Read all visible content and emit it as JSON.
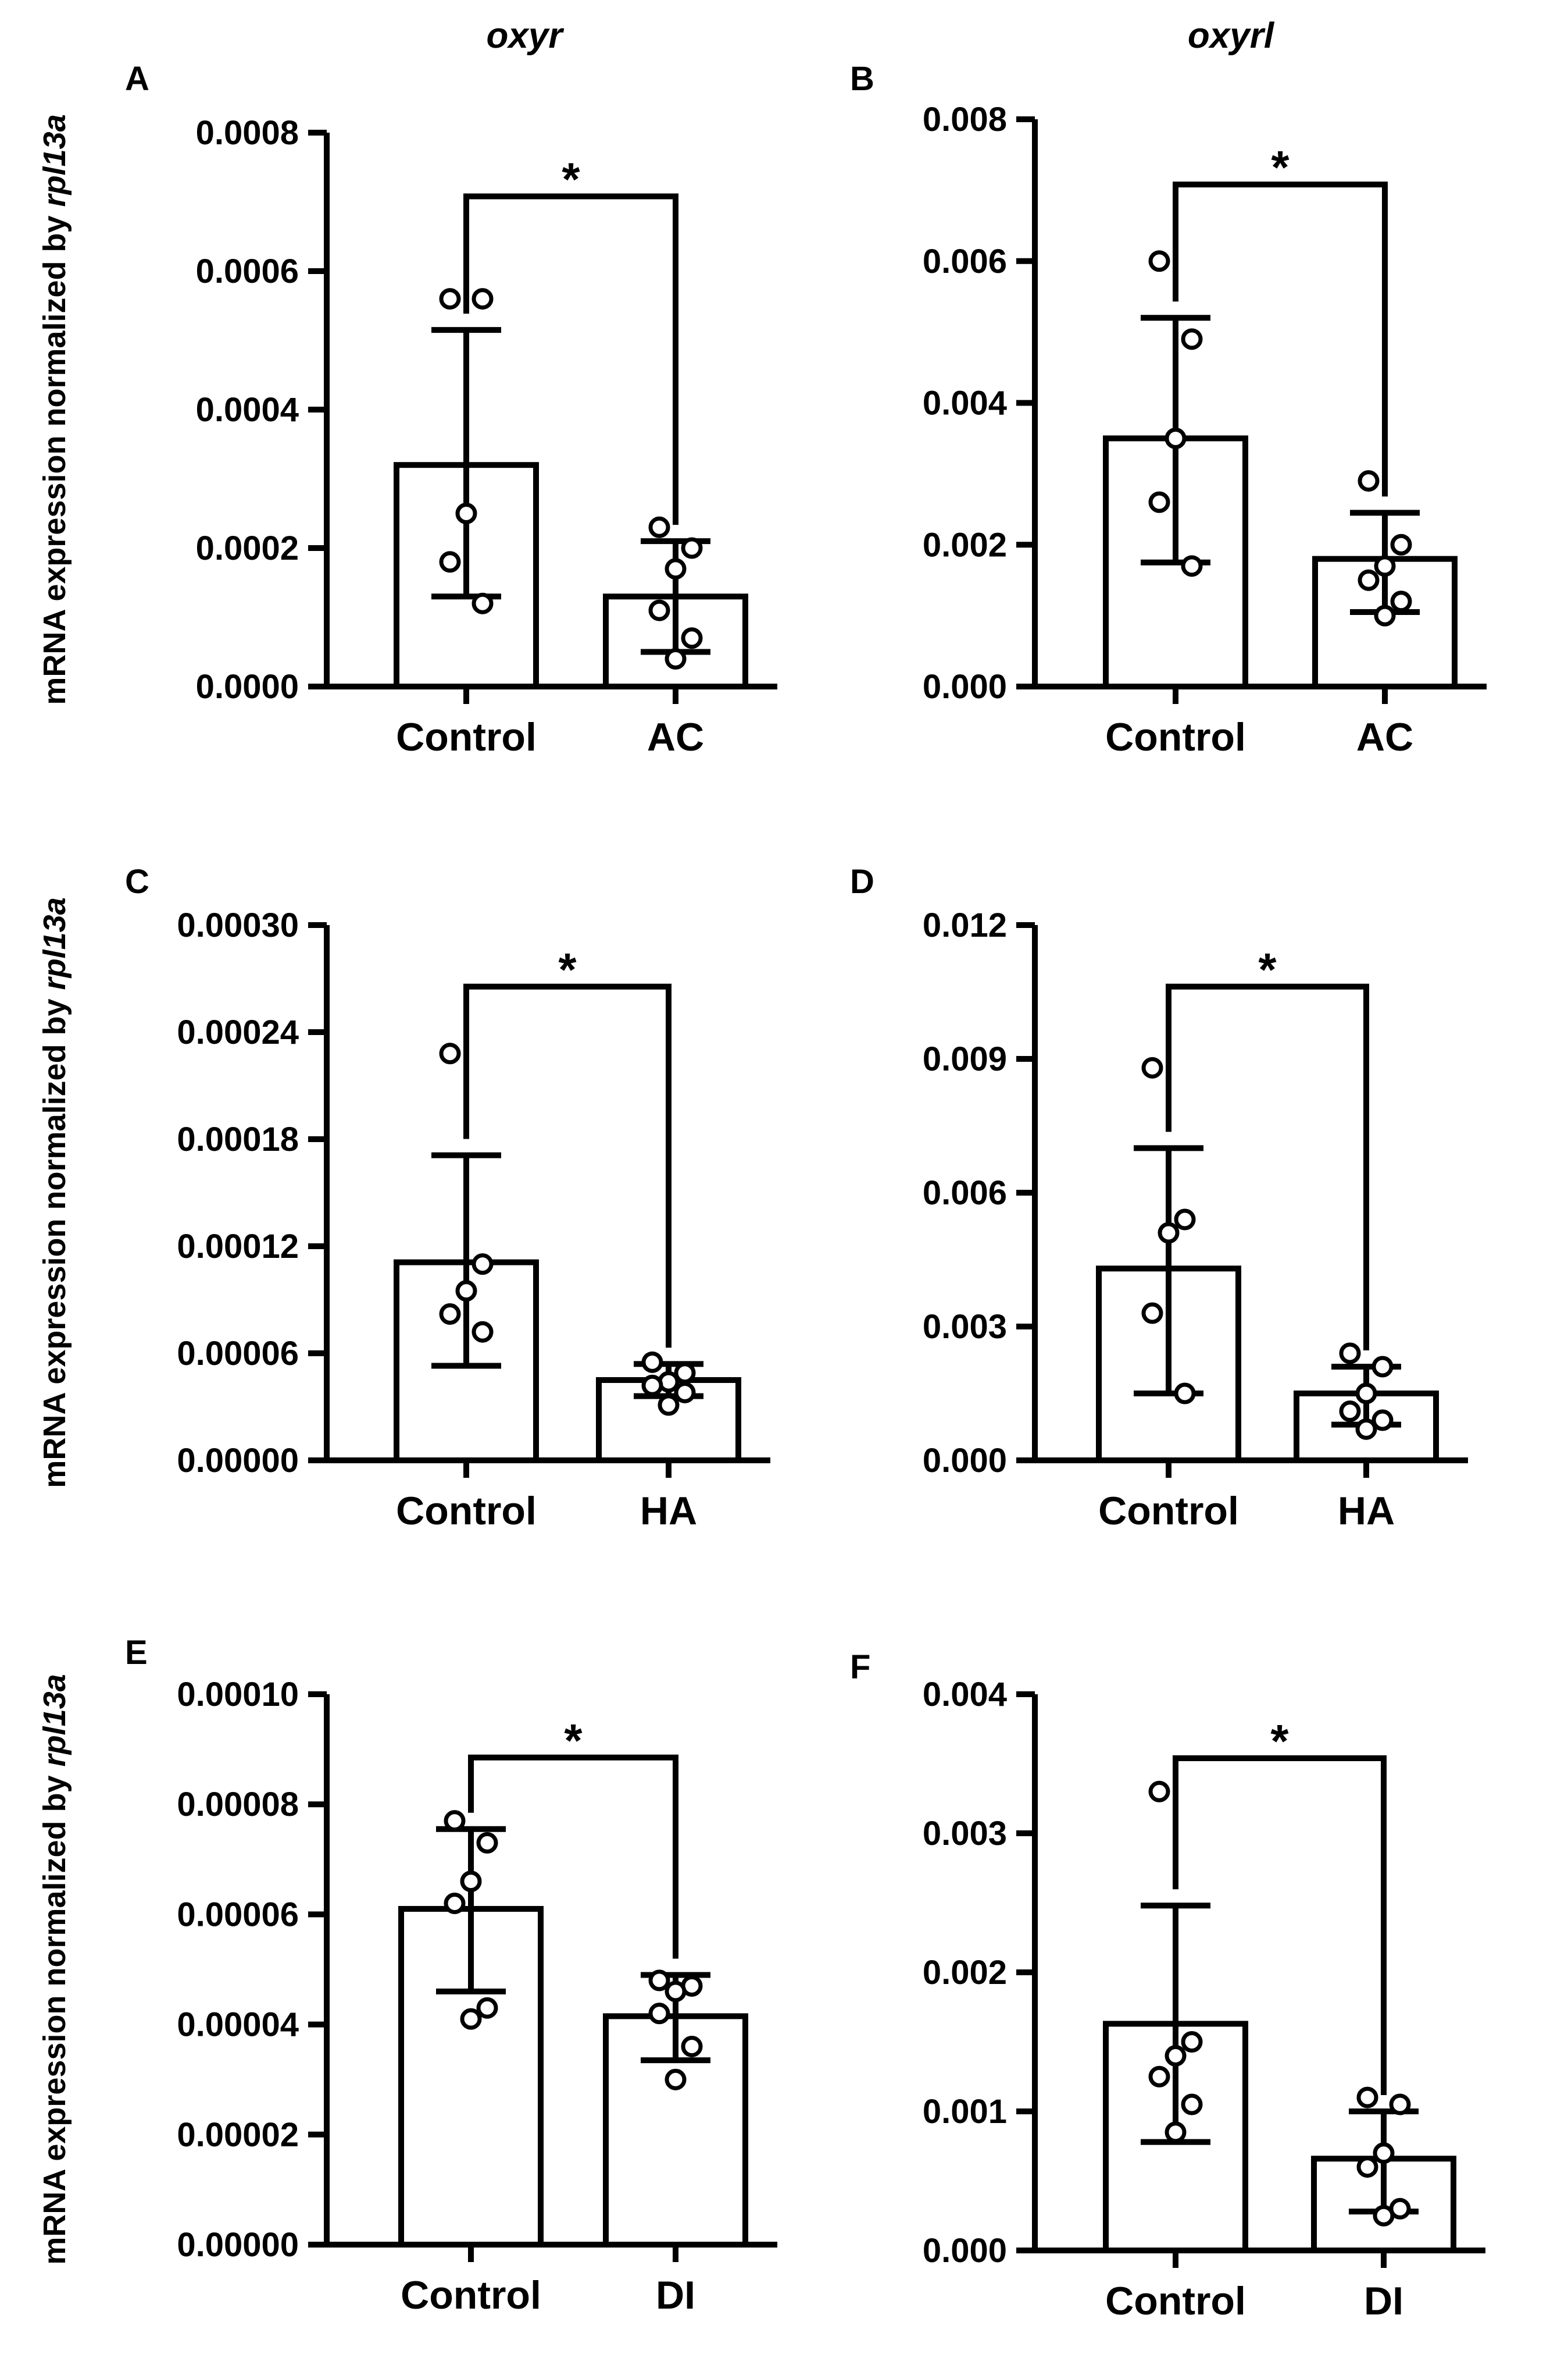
{
  "column_titles": [
    "oxyr",
    "oxyrl"
  ],
  "ylabel": {
    "prefix": "mRNA expression normalized by ",
    "gene": "rpl13a"
  },
  "chart_data": [
    {
      "panel": "A",
      "type": "bar",
      "title": "oxyr",
      "categories": [
        "Control",
        "AC"
      ],
      "ylim": [
        0,
        0.0008
      ],
      "yticks": [
        "0.0000",
        "0.0002",
        "0.0004",
        "0.0006",
        "0.0008"
      ],
      "means": [
        0.00032,
        0.00013
      ],
      "sd_low": [
        0.00013,
        5e-05
      ],
      "sd_high": [
        0.000515,
        0.00021
      ],
      "points": [
        [
          0.00056,
          0.00056,
          0.00025,
          0.00018,
          0.00012
        ],
        [
          0.00023,
          0.0002,
          0.00017,
          0.00011,
          7e-05,
          4e-05
        ]
      ],
      "significance": "*"
    },
    {
      "panel": "B",
      "type": "bar",
      "title": "oxyrl",
      "categories": [
        "Control",
        "AC"
      ],
      "ylim": [
        0,
        0.008
      ],
      "yticks": [
        "0.000",
        "0.002",
        "0.004",
        "0.006",
        "0.008"
      ],
      "means": [
        0.0035,
        0.0018
      ],
      "sd_low": [
        0.00175,
        0.00105
      ],
      "sd_high": [
        0.0052,
        0.00245
      ],
      "points": [
        [
          0.006,
          0.0049,
          0.0035,
          0.0026,
          0.0017
        ],
        [
          0.0029,
          0.002,
          0.0017,
          0.0015,
          0.0012,
          0.001
        ]
      ],
      "significance": "*"
    },
    {
      "panel": "C",
      "type": "bar",
      "title": "oxyr",
      "categories": [
        "Control",
        "HA"
      ],
      "ylim": [
        0,
        0.0003
      ],
      "yticks": [
        "0.00000",
        "0.00006",
        "0.00012",
        "0.00018",
        "0.00024",
        "0.00030"
      ],
      "means": [
        0.000111,
        4.5e-05
      ],
      "sd_low": [
        5.3e-05,
        3.6e-05
      ],
      "sd_high": [
        0.000171,
        5.4e-05
      ],
      "points": [
        [
          0.000228,
          0.00011,
          9.5e-05,
          8.2e-05,
          7.2e-05
        ],
        [
          5.5e-05,
          4.9e-05,
          4.4e-05,
          4.2e-05,
          3.8e-05,
          3.1e-05
        ]
      ],
      "significance": "*"
    },
    {
      "panel": "D",
      "type": "bar",
      "title": "oxyrl",
      "categories": [
        "Control",
        "HA"
      ],
      "ylim": [
        0,
        0.012
      ],
      "yticks": [
        "0.000",
        "0.003",
        "0.006",
        "0.009",
        "0.012"
      ],
      "means": [
        0.0043,
        0.0015
      ],
      "sd_low": [
        0.0015,
        0.0008
      ],
      "sd_high": [
        0.007,
        0.0021
      ],
      "points": [
        [
          0.0088,
          0.0054,
          0.0051,
          0.0033,
          0.0015
        ],
        [
          0.0024,
          0.0021,
          0.0015,
          0.0011,
          0.0009,
          0.0007
        ]
      ],
      "significance": "*"
    },
    {
      "panel": "E",
      "type": "bar",
      "title": "oxyr",
      "categories": [
        "Control",
        "DI"
      ],
      "ylim": [
        0,
        0.0001
      ],
      "yticks": [
        "0.00000",
        "0.00002",
        "0.00004",
        "0.00006",
        "0.00008",
        "0.00010"
      ],
      "means": [
        6.1e-05,
        4.15e-05
      ],
      "sd_low": [
        4.6e-05,
        3.35e-05
      ],
      "sd_high": [
        7.55e-05,
        4.9e-05
      ],
      "points": [
        [
          7.7e-05,
          7.3e-05,
          6.6e-05,
          6.2e-05,
          4.3e-05,
          4.1e-05
        ],
        [
          4.8e-05,
          4.7e-05,
          4.6e-05,
          4.2e-05,
          3.6e-05,
          3e-05
        ]
      ],
      "significance": "*"
    },
    {
      "panel": "F",
      "type": "bar",
      "title": "oxyrl",
      "categories": [
        "Control",
        "DI"
      ],
      "ylim": [
        0,
        0.004
      ],
      "yticks": [
        "0.000",
        "0.001",
        "0.002",
        "0.003",
        "0.004"
      ],
      "means": [
        0.00163,
        0.00066
      ],
      "sd_low": [
        0.00078,
        0.00028
      ],
      "sd_high": [
        0.00248,
        0.001
      ],
      "points": [
        [
          0.0033,
          0.0015,
          0.0014,
          0.00125,
          0.00105,
          0.00085
        ],
        [
          0.0011,
          0.00105,
          0.0007,
          0.0006,
          0.0003,
          0.00025
        ]
      ],
      "significance": "*"
    }
  ]
}
